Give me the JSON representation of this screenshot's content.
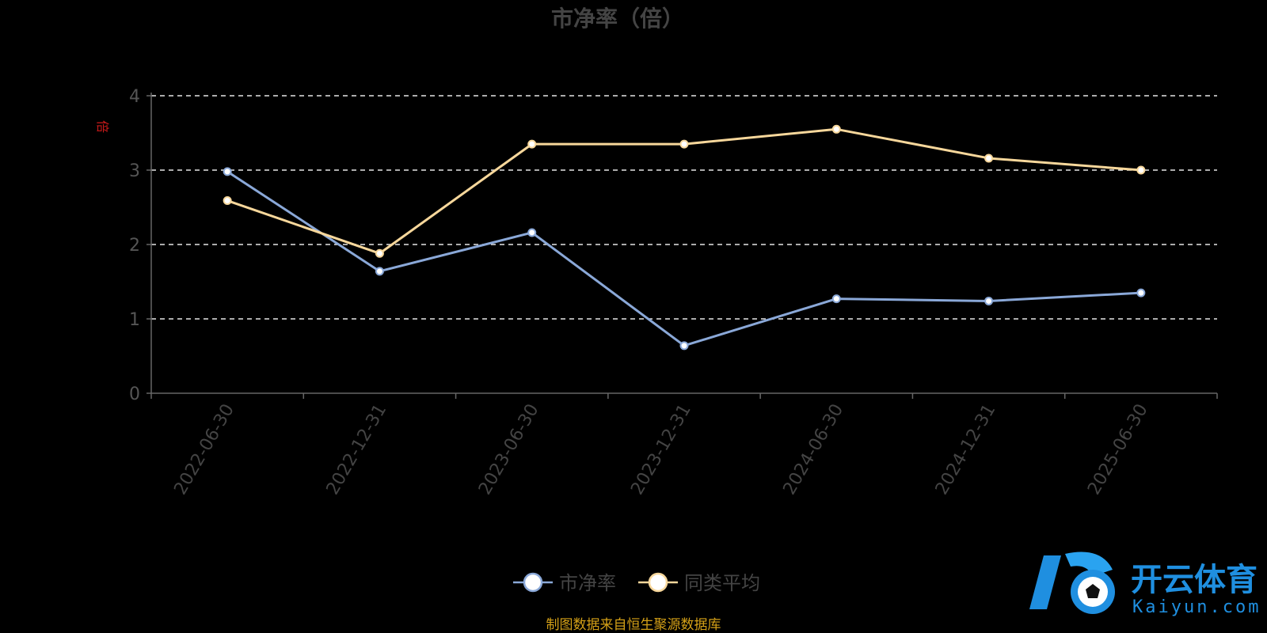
{
  "chart_data": {
    "type": "line",
    "title": "市净率（倍）",
    "ylabel": "倍",
    "ylim": [
      0,
      4
    ],
    "yticks": [
      0,
      1,
      2,
      3,
      4
    ],
    "grid": true,
    "categories": [
      "2022-06-30",
      "2022-12-31",
      "2023-06-30",
      "2023-12-31",
      "2024-06-30",
      "2024-12-31",
      "2025-06-30"
    ],
    "series": [
      {
        "name": "市净率",
        "color": "#8aa8d8",
        "values": [
          2.98,
          1.64,
          2.16,
          0.64,
          1.27,
          1.24,
          1.35
        ]
      },
      {
        "name": "同类平均",
        "color": "#f7d79b",
        "values": [
          2.59,
          1.88,
          3.35,
          3.35,
          3.55,
          3.16,
          3.0
        ]
      }
    ],
    "legend_position": "bottom-center"
  },
  "footer": {
    "source": "制图数据来自恒生聚源数据库"
  },
  "watermark": {
    "name": "开云体育",
    "url": "Kaiyun.com",
    "icon": "soccer-ball-k-logo-icon"
  }
}
